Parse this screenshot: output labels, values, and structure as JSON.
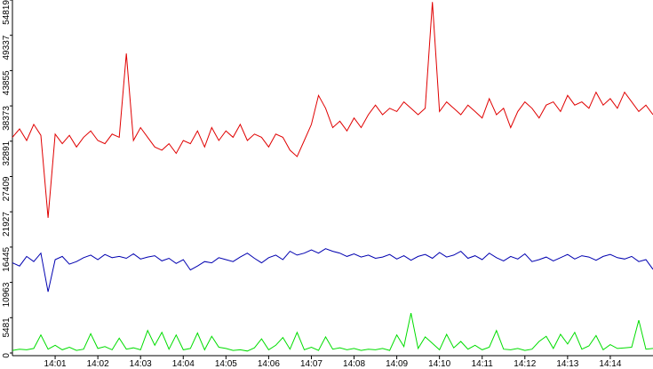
{
  "chart_data": {
    "type": "line",
    "x": [
      0,
      10,
      20,
      30,
      40,
      50,
      60,
      70,
      80,
      90,
      100,
      110,
      120,
      130,
      140,
      150,
      160,
      170,
      180,
      190,
      200,
      210,
      220,
      230,
      240,
      250,
      260,
      270,
      280,
      290,
      300,
      310,
      320,
      330,
      340,
      350,
      360,
      370,
      380,
      390,
      400,
      410,
      420,
      430,
      440,
      450,
      460,
      470,
      480,
      490,
      500,
      510,
      520,
      530,
      540,
      550,
      560,
      570,
      580,
      590,
      600,
      610,
      620,
      630,
      640,
      650,
      660,
      670,
      680,
      690,
      700,
      710,
      720,
      730,
      740,
      750,
      760,
      770,
      780,
      790,
      800,
      810,
      820,
      830,
      840,
      850,
      860,
      870,
      880,
      890,
      900
    ],
    "series": [
      {
        "color": "#e00000",
        "values": [
          33500,
          34800,
          33000,
          35500,
          33800,
          21000,
          34000,
          32500,
          33800,
          32000,
          33500,
          34500,
          33000,
          32500,
          34000,
          33500,
          46500,
          33000,
          35000,
          33500,
          32000,
          31500,
          32500,
          31000,
          33000,
          32500,
          34500,
          32000,
          35000,
          33000,
          34500,
          33500,
          35500,
          33000,
          34000,
          33500,
          32000,
          34000,
          33500,
          31500,
          30500,
          33000,
          35500,
          40000,
          38000,
          35000,
          36000,
          34500,
          36500,
          35000,
          37000,
          38500,
          37000,
          38000,
          37500,
          39000,
          38000,
          37000,
          38000,
          54500,
          37500,
          39000,
          38000,
          37000,
          38500,
          37500,
          36500,
          39500,
          37000,
          38000,
          35000,
          37500,
          39000,
          38000,
          36500,
          38500,
          39000,
          37500,
          40000,
          38500,
          39000,
          38000,
          40500,
          38500,
          39500,
          38000,
          40500,
          39000,
          37500,
          38500,
          37000
        ]
      },
      {
        "color": "#0000b0",
        "values": [
          14000,
          13500,
          15000,
          14200,
          15500,
          9500,
          14500,
          15000,
          13800,
          14200,
          14800,
          15200,
          14500,
          15300,
          14800,
          15000,
          14700,
          15400,
          14600,
          14900,
          15100,
          14300,
          14700,
          13900,
          14500,
          12900,
          13500,
          14200,
          14000,
          14800,
          14500,
          14200,
          14900,
          15500,
          14700,
          14000,
          14800,
          15200,
          14500,
          15800,
          15200,
          15500,
          16000,
          15500,
          16200,
          15800,
          15500,
          15000,
          15400,
          14900,
          15200,
          14700,
          14900,
          15300,
          14600,
          15100,
          14400,
          15000,
          15300,
          14700,
          15600,
          14900,
          15200,
          15800,
          14700,
          15100,
          14500,
          15500,
          14800,
          14300,
          15000,
          14600,
          15400,
          14200,
          14500,
          14900,
          14300,
          14800,
          15300,
          14600,
          15100,
          14900,
          14400,
          15000,
          15300,
          14800,
          14600,
          15000,
          14200,
          14500,
          13000
        ]
      },
      {
        "color": "#00dd00",
        "values": [
          400,
          600,
          500,
          700,
          2800,
          600,
          1200,
          500,
          900,
          400,
          600,
          3000,
          700,
          1000,
          500,
          2300,
          600,
          800,
          500,
          3500,
          1200,
          3200,
          600,
          2800,
          500,
          700,
          3100,
          500,
          2600,
          900,
          700,
          400,
          500,
          300,
          800,
          2200,
          500,
          1200,
          2400,
          600,
          3200,
          500,
          900,
          400,
          2500,
          600,
          800,
          500,
          700,
          400,
          600,
          500,
          700,
          400,
          2800,
          1000,
          6200,
          700,
          2500,
          1500,
          500,
          2900,
          800,
          1800,
          600,
          1200,
          500,
          900,
          3500,
          600,
          500,
          700,
          400,
          600,
          1800,
          2600,
          700,
          2900,
          1400,
          3200,
          600,
          1100,
          2700,
          500,
          1300,
          700,
          800,
          900,
          5100,
          600,
          700
        ]
      }
    ],
    "xlim": [
      0,
      900
    ],
    "xticks": [
      {
        "value": 60,
        "label": "14:01"
      },
      {
        "value": 120,
        "label": "14:02"
      },
      {
        "value": 180,
        "label": "14:03"
      },
      {
        "value": 240,
        "label": "14:04"
      },
      {
        "value": 300,
        "label": "14:05"
      },
      {
        "value": 360,
        "label": "14:06"
      },
      {
        "value": 420,
        "label": "14:07"
      },
      {
        "value": 480,
        "label": "14:08"
      },
      {
        "value": 540,
        "label": "14:09"
      },
      {
        "value": 600,
        "label": "14:10"
      },
      {
        "value": 660,
        "label": "14:11"
      },
      {
        "value": 720,
        "label": "14:12"
      },
      {
        "value": 780,
        "label": "14:13"
      },
      {
        "value": 840,
        "label": "14:14"
      }
    ],
    "ylim": [
      0,
      54819
    ],
    "yticks": [
      0,
      5481,
      10963,
      16445,
      21927,
      27409,
      32891,
      38373,
      43855,
      49337,
      54819
    ]
  }
}
